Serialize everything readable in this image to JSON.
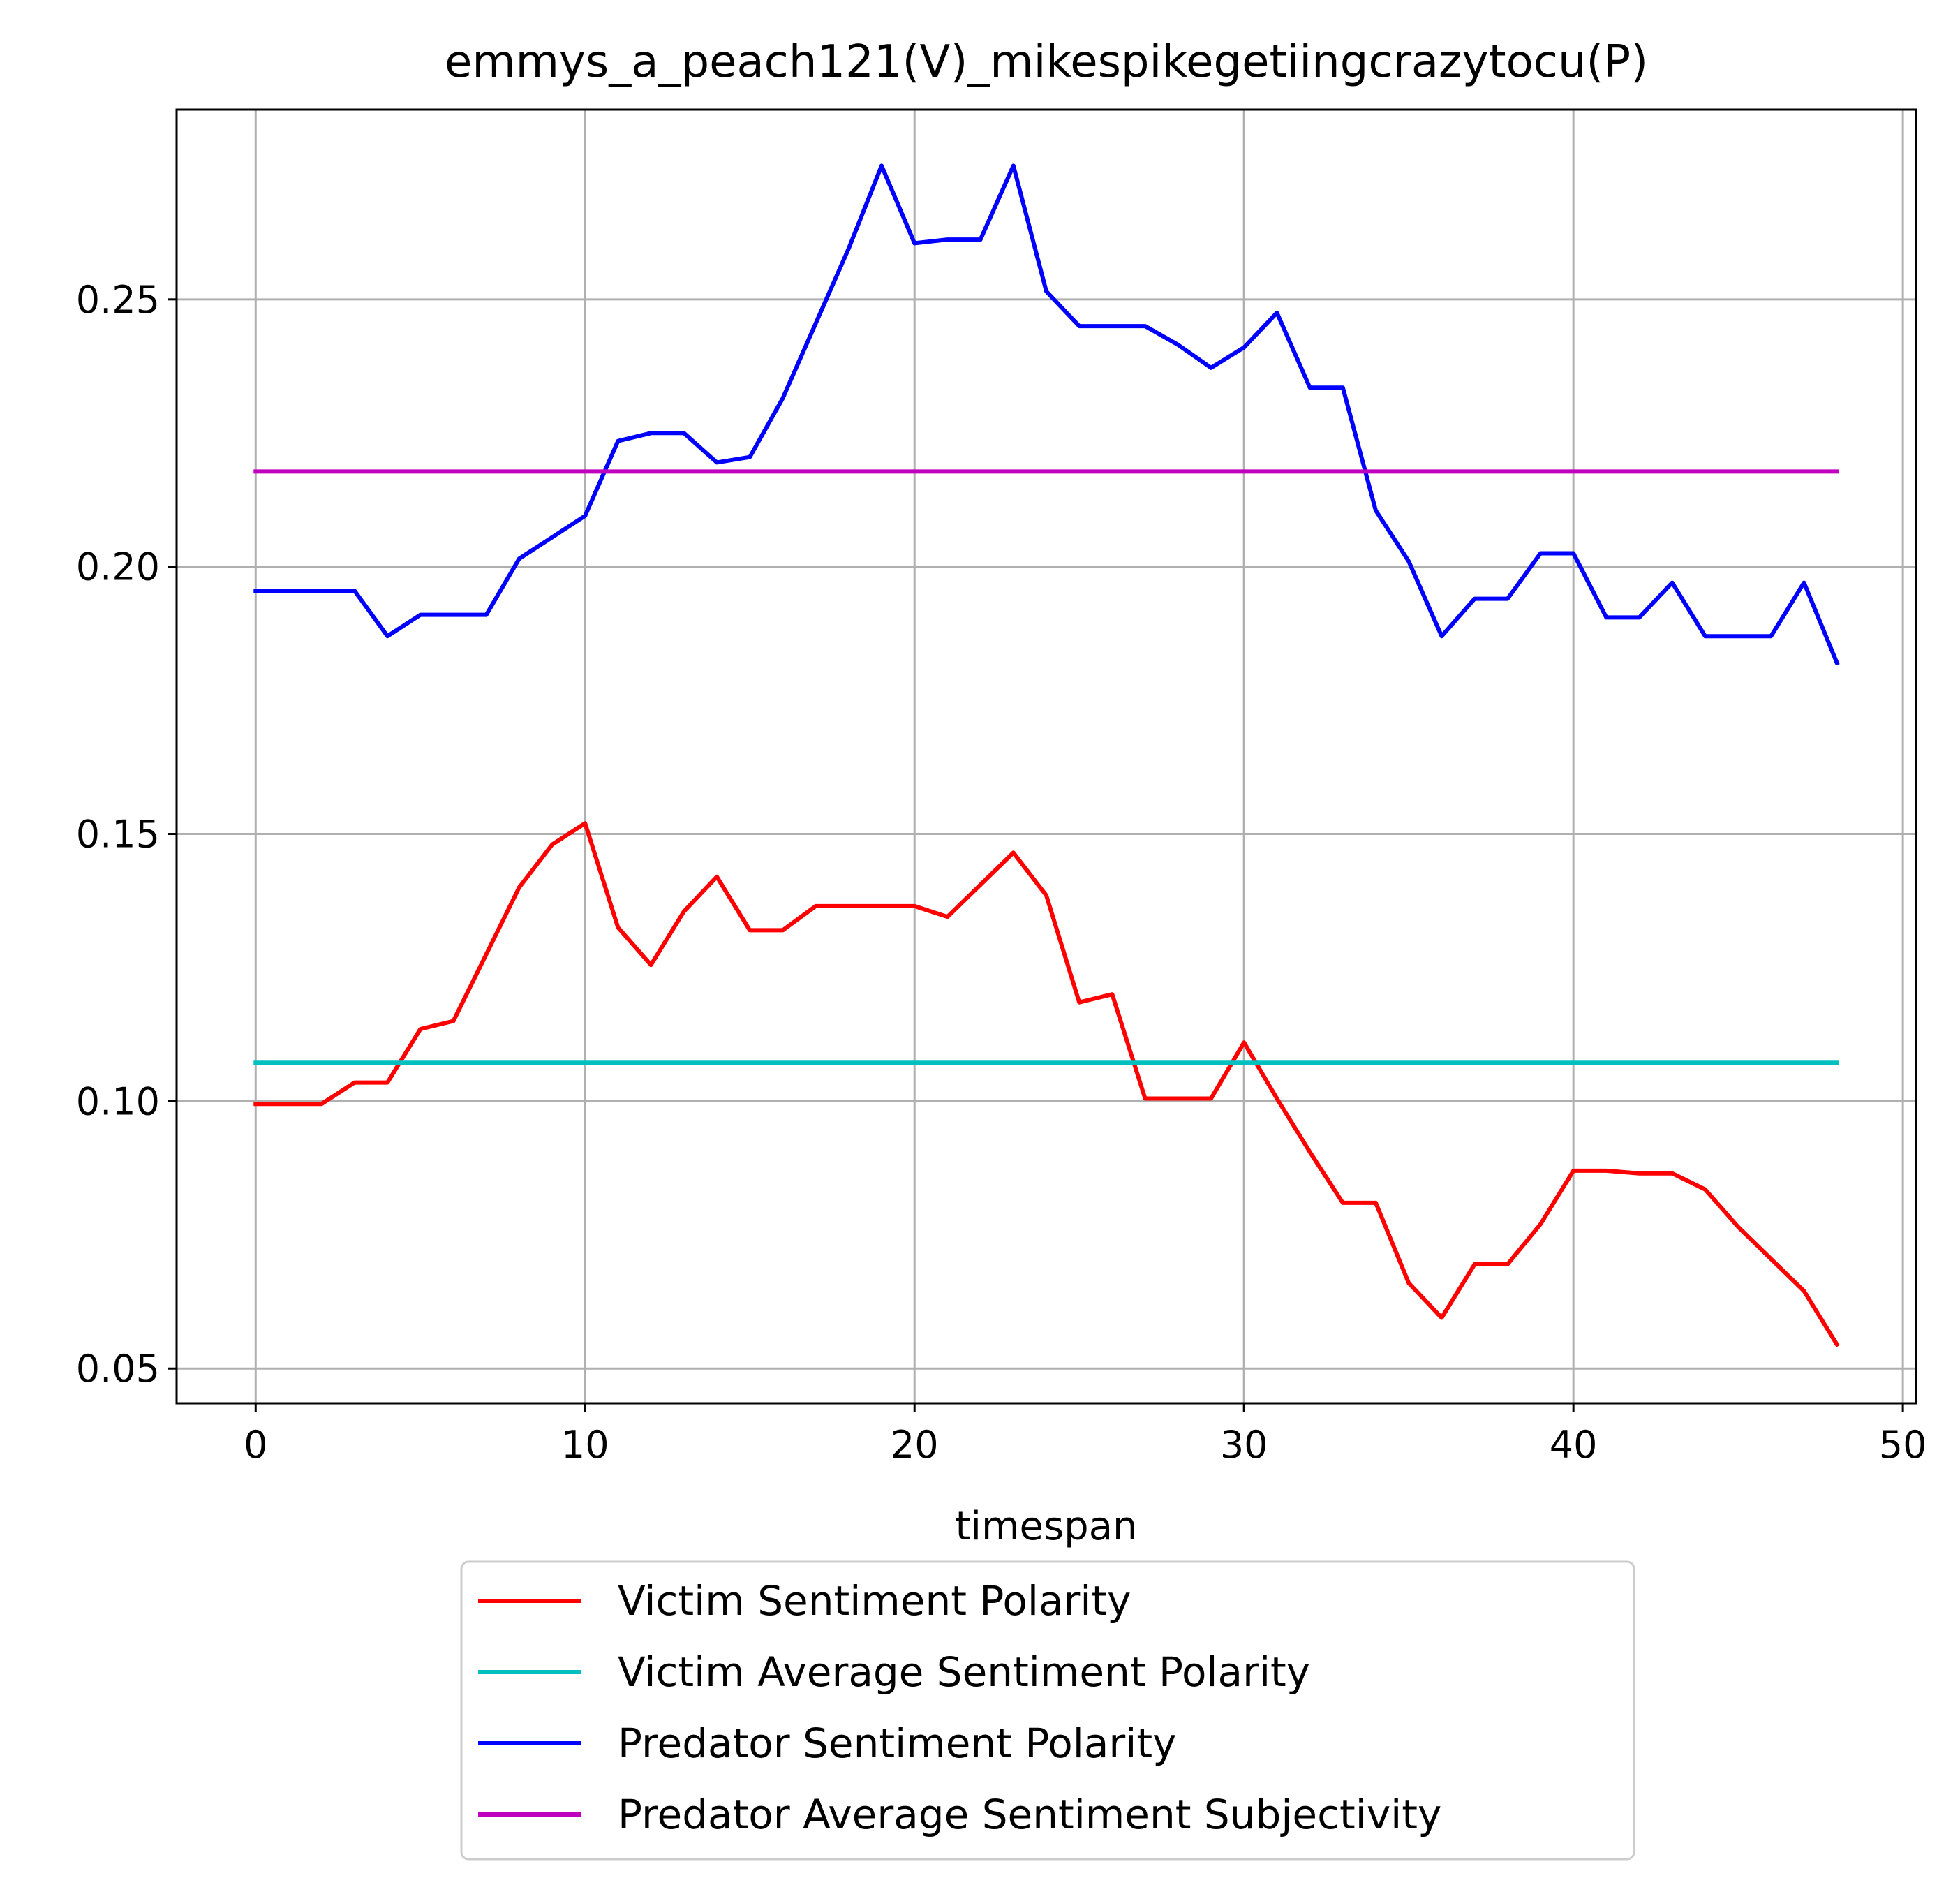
{
  "chart_data": {
    "type": "line",
    "title": "emmys_a_peach121(V)_mikespikegetiingcrazytocu(P)",
    "xlabel": "timespan",
    "ylabel": "",
    "xlim": [
      -2.4,
      50.4
    ],
    "ylim": [
      0.0435,
      0.2855
    ],
    "x_ticks": [
      0,
      10,
      20,
      30,
      40,
      50
    ],
    "x_tick_labels": [
      "0",
      "10",
      "20",
      "30",
      "40",
      "50"
    ],
    "y_ticks": [
      0.05,
      0.1,
      0.15,
      0.2,
      0.25
    ],
    "y_tick_labels": [
      "0.05",
      "0.10",
      "0.15",
      "0.20",
      "0.25"
    ],
    "grid": true,
    "legend_position": "below-plot",
    "x": [
      0,
      1,
      2,
      3,
      4,
      5,
      6,
      7,
      8,
      9,
      10,
      11,
      12,
      13,
      14,
      15,
      16,
      17,
      18,
      19,
      20,
      21,
      22,
      23,
      24,
      25,
      26,
      27,
      28,
      29,
      30,
      31,
      32,
      33,
      34,
      35,
      36,
      37,
      38,
      39,
      40,
      41,
      42,
      43,
      44,
      45,
      46,
      47,
      48
    ],
    "series": [
      {
        "name": "Victim Sentiment Polarity",
        "color": "#ff0000",
        "values": [
          0.0995,
          0.0995,
          0.0995,
          0.1035,
          0.1035,
          0.1135,
          0.115,
          0.1275,
          0.14,
          0.148,
          0.152,
          0.1325,
          0.1255,
          0.1355,
          0.142,
          0.132,
          0.132,
          0.1365,
          0.1365,
          0.1365,
          0.1365,
          0.1345,
          0.1405,
          0.1465,
          0.1385,
          0.1185,
          0.12,
          0.1005,
          0.1005,
          0.1005,
          0.111,
          0.1005,
          0.0905,
          0.081,
          0.081,
          0.066,
          0.0595,
          0.0695,
          0.0695,
          0.077,
          0.087,
          0.087,
          0.0865,
          0.0865,
          0.0835,
          0.0765,
          0.0705,
          0.0645,
          0.0545
        ]
      },
      {
        "name": "Victim Average Sentiment Polarity",
        "color": "#00bfbf",
        "values": [
          0.1072,
          0.1072,
          0.1072,
          0.1072,
          0.1072,
          0.1072,
          0.1072,
          0.1072,
          0.1072,
          0.1072,
          0.1072,
          0.1072,
          0.1072,
          0.1072,
          0.1072,
          0.1072,
          0.1072,
          0.1072,
          0.1072,
          0.1072,
          0.1072,
          0.1072,
          0.1072,
          0.1072,
          0.1072,
          0.1072,
          0.1072,
          0.1072,
          0.1072,
          0.1072,
          0.1072,
          0.1072,
          0.1072,
          0.1072,
          0.1072,
          0.1072,
          0.1072,
          0.1072,
          0.1072,
          0.1072,
          0.1072,
          0.1072,
          0.1072,
          0.1072,
          0.1072,
          0.1072,
          0.1072,
          0.1072,
          0.1072
        ]
      },
      {
        "name": "Predator Sentiment Polarity",
        "color": "#0000ff",
        "values": [
          0.1955,
          0.1955,
          0.1955,
          0.1955,
          0.187,
          0.191,
          0.191,
          0.191,
          0.2015,
          0.2055,
          0.2095,
          0.2235,
          0.225,
          0.225,
          0.2195,
          0.2205,
          0.2315,
          0.2455,
          0.2595,
          0.275,
          0.2605,
          0.2612,
          0.2612,
          0.275,
          0.2515,
          0.245,
          0.245,
          0.245,
          0.2415,
          0.2372,
          0.241,
          0.2475,
          0.2335,
          0.2335,
          0.2105,
          0.201,
          0.187,
          0.194,
          0.194,
          0.2025,
          0.2025,
          0.1905,
          0.1905,
          0.197,
          0.187,
          0.187,
          0.187,
          0.197,
          0.182
        ]
      },
      {
        "name": "Predator Average Sentiment Subjectivity",
        "color": "#bf00bf",
        "values": [
          0.2178,
          0.2178,
          0.2178,
          0.2178,
          0.2178,
          0.2178,
          0.2178,
          0.2178,
          0.2178,
          0.2178,
          0.2178,
          0.2178,
          0.2178,
          0.2178,
          0.2178,
          0.2178,
          0.2178,
          0.2178,
          0.2178,
          0.2178,
          0.2178,
          0.2178,
          0.2178,
          0.2178,
          0.2178,
          0.2178,
          0.2178,
          0.2178,
          0.2178,
          0.2178,
          0.2178,
          0.2178,
          0.2178,
          0.2178,
          0.2178,
          0.2178,
          0.2178,
          0.2178,
          0.2178,
          0.2178,
          0.2178,
          0.2178,
          0.2178,
          0.2178,
          0.2178,
          0.2178,
          0.2178,
          0.2178,
          0.2178
        ]
      }
    ]
  }
}
